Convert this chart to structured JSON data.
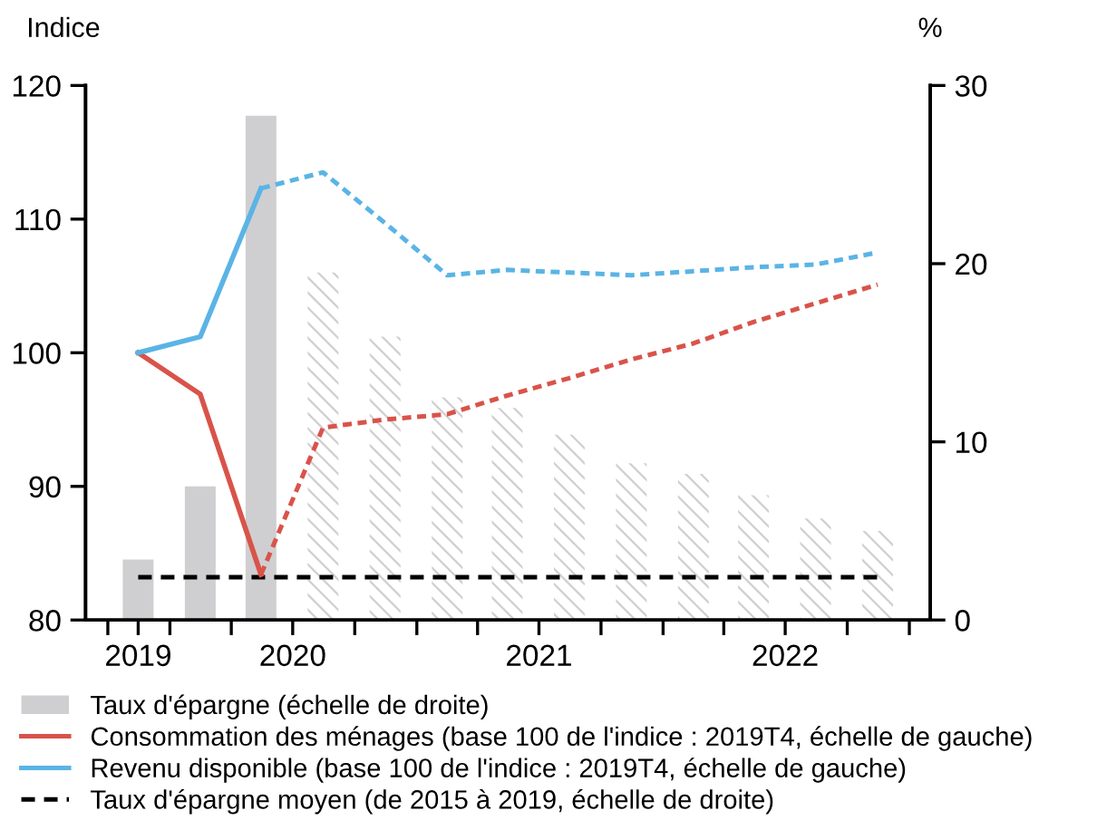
{
  "chart_data": {
    "type": "line",
    "ylabel": "Indice",
    "y2label": "%",
    "x": [
      "2019-11-15",
      "2020-02-15",
      "2020-05-15",
      "2020-08-15",
      "2020-11-15",
      "2021-02-15",
      "2021-05-15",
      "2021-08-15",
      "2021-11-15",
      "2022-02-15",
      "2022-05-15",
      "2022-08-15",
      "2022-11-15"
    ],
    "xlim": [
      "2019-08-29",
      "2023-02-01"
    ],
    "xticks": [
      {
        "value": "2019-10-01",
        "label": null
      },
      {
        "value": "2019-11-15",
        "label": "2019"
      },
      {
        "value": "2020-01-01",
        "label": null
      },
      {
        "value": "2020-04-01",
        "label": null
      },
      {
        "value": "2020-07-01",
        "label": "2020"
      },
      {
        "value": "2020-10-01",
        "label": null
      },
      {
        "value": "2021-01-01",
        "label": null
      },
      {
        "value": "2021-04-01",
        "label": null
      },
      {
        "value": "2021-07-01",
        "label": "2021"
      },
      {
        "value": "2021-10-01",
        "label": null
      },
      {
        "value": "2022-01-01",
        "label": null
      },
      {
        "value": "2022-04-01",
        "label": null
      },
      {
        "value": "2022-07-01",
        "label": "2022"
      },
      {
        "value": "2022-10-01",
        "label": null
      },
      {
        "value": "2023-01-01",
        "label": null
      }
    ],
    "ylim": [
      80,
      120
    ],
    "yticks": [
      80,
      90,
      100,
      110,
      120
    ],
    "y2lim": [
      0,
      30
    ],
    "y2ticks": [
      0,
      10,
      20,
      30
    ],
    "series": [
      {
        "name": "Taux d'épargne (échelle de droite)",
        "type": "bar",
        "axis": "y2",
        "color": "#cfcfd1",
        "line_style": "solid",
        "values": [
          3.4,
          7.5,
          28.3,
          null,
          null,
          null,
          null,
          null,
          null,
          null,
          null,
          null,
          null
        ]
      },
      {
        "type": "bar",
        "axis": "y2",
        "color": "#cfcfd1",
        "line_style": "dashed",
        "values": [
          null,
          null,
          null,
          19.5,
          15.9,
          12.5,
          11.9,
          10.4,
          8.8,
          8.2,
          7.0,
          5.7,
          5.0
        ]
      },
      {
        "name": "Consommation des ménages (base 100 de l'indice : 2019T4, échelle de gauche)",
        "color": "#d9534a",
        "line_style": "solid",
        "values": [
          100,
          96.9,
          83.4,
          null,
          null,
          null,
          null,
          null,
          null,
          null,
          null,
          null,
          null
        ]
      },
      {
        "color": "#d9534a",
        "line_style": "dotted",
        "values": [
          null,
          null,
          83.4,
          94.4,
          95.0,
          95.4,
          96.8,
          98.1,
          99.5,
          100.7,
          102.3,
          103.7,
          105.1
        ]
      },
      {
        "name": "Revenu disponible (base 100 de l'indice : 2019T4, échelle de gauche)",
        "color": "#5ab4e5",
        "line_style": "solid",
        "values": [
          100,
          101.2,
          112.3,
          null,
          null,
          null,
          null,
          null,
          null,
          null,
          null,
          null,
          null
        ]
      },
      {
        "color": "#5ab4e5",
        "line_style": "dotted",
        "values": [
          null,
          null,
          112.3,
          113.5,
          109.7,
          105.8,
          106.2,
          106.0,
          105.8,
          106.1,
          106.4,
          106.6,
          107.5
        ]
      },
      {
        "name": "Taux d'épargne moyen (de 2015 à 2019, échelle de droite)",
        "axis": "y2",
        "color": "#000000",
        "line_style": "dashed",
        "values": [
          2.4,
          2.4,
          2.4,
          2.4,
          2.4,
          2.4,
          2.4,
          2.4,
          2.4,
          2.4,
          2.4,
          2.4,
          2.4
        ]
      }
    ],
    "legend": "bottom",
    "grid": false
  }
}
